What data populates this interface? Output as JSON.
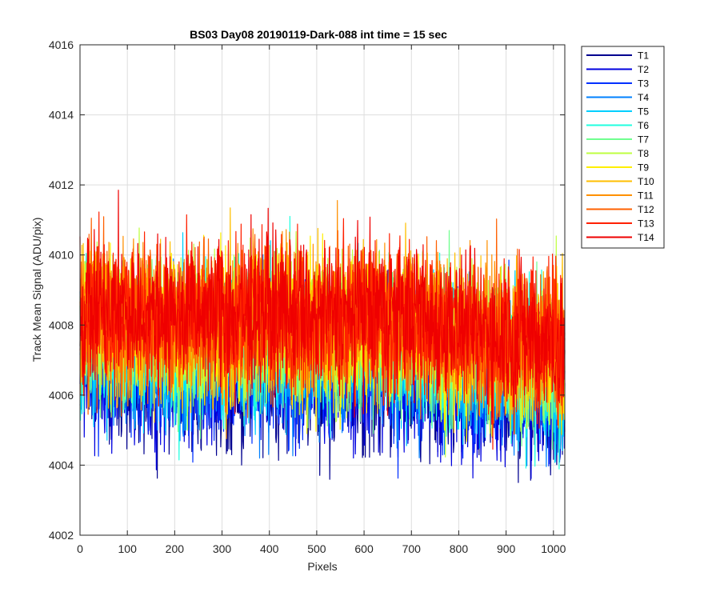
{
  "chart_data": {
    "type": "line",
    "title": "BS03 Day08 20190119-Dark-088 int time = 15 sec",
    "xlabel": "Pixels",
    "ylabel": "Track Mean Signal (ADU/pix)",
    "xlim": [
      0,
      1024
    ],
    "ylim": [
      4002,
      4016
    ],
    "xticks": [
      0,
      100,
      200,
      300,
      400,
      500,
      600,
      700,
      800,
      900,
      1000
    ],
    "yticks": [
      4002,
      4004,
      4006,
      4008,
      4010,
      4012,
      4014,
      4016
    ],
    "grid": true,
    "legend_position": "outside-top-right",
    "n_points": 1024,
    "noise_profile": {
      "x": [
        0,
        100,
        200,
        300,
        400,
        500,
        600,
        700,
        800,
        900,
        1024
      ],
      "center": [
        4008.2,
        4008.0,
        4007.9,
        4007.9,
        4008.1,
        4007.9,
        4008.0,
        4007.9,
        4007.6,
        4007.4,
        4007.2
      ],
      "spread": [
        1.3,
        1.3,
        1.3,
        1.3,
        1.35,
        1.3,
        1.3,
        1.3,
        1.3,
        1.3,
        1.3
      ]
    },
    "series": [
      {
        "name": "T1",
        "color": "#00008F",
        "offset": -1.5
      },
      {
        "name": "T2",
        "color": "#0000DF",
        "offset": -1.25
      },
      {
        "name": "T3",
        "color": "#0030FF",
        "offset": -1.0
      },
      {
        "name": "T4",
        "color": "#0080FF",
        "offset": -0.8
      },
      {
        "name": "T5",
        "color": "#00CFFF",
        "offset": -0.6
      },
      {
        "name": "T6",
        "color": "#20FFDF",
        "offset": -0.45
      },
      {
        "name": "T7",
        "color": "#70FF8F",
        "offset": -0.3
      },
      {
        "name": "T8",
        "color": "#BFFF40",
        "offset": -0.15
      },
      {
        "name": "T9",
        "color": "#FFEF00",
        "offset": -0.05
      },
      {
        "name": "T10",
        "color": "#FFBF00",
        "offset": 0.05
      },
      {
        "name": "T11",
        "color": "#FF9000",
        "offset": 0.15
      },
      {
        "name": "T12",
        "color": "#FF6000",
        "offset": 0.25
      },
      {
        "name": "T13",
        "color": "#FF2000",
        "offset": 0.3
      },
      {
        "name": "T14",
        "color": "#EF0000",
        "offset": 0.35
      }
    ]
  }
}
